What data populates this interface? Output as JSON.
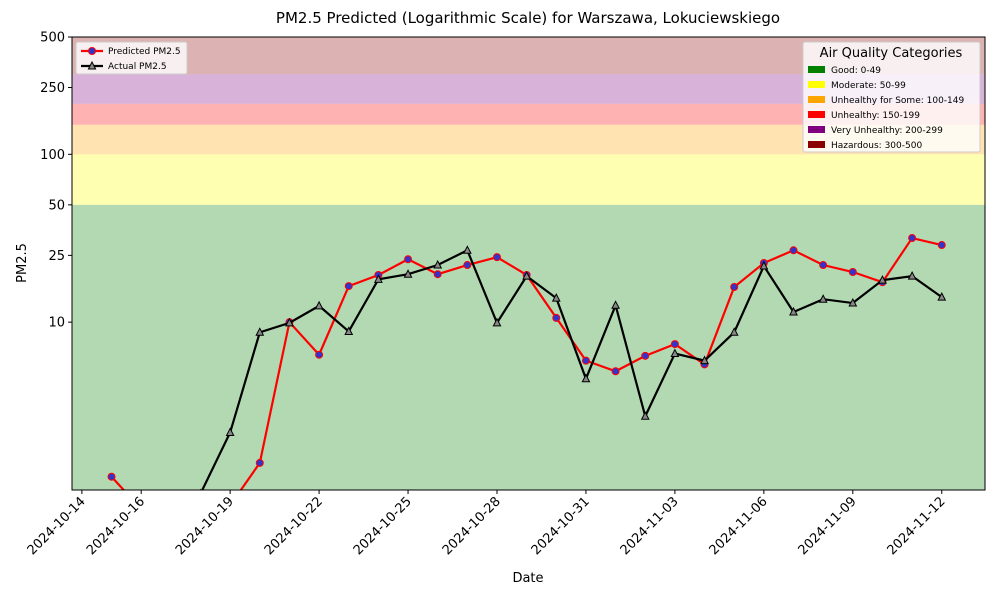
{
  "chart_data": {
    "type": "line",
    "title": "PM2.5 Predicted (Logarithmic Scale) for Warszawa, Lokuciewskiego",
    "x_label": "Date",
    "y_label": "PM2.5",
    "log_scale": true,
    "ylim": [
      1,
      500
    ],
    "yticks": [
      10,
      25,
      50,
      100,
      250,
      500
    ],
    "xlim": [
      "2024-10-13T16:00",
      "2024-11-13T11:00"
    ],
    "xticks": [
      "2024-10-14",
      "2024-10-16",
      "2024-10-19",
      "2024-10-22",
      "2024-10-25",
      "2024-10-28",
      "2024-10-31",
      "2024-11-03",
      "2024-11-06",
      "2024-11-09",
      "2024-11-12"
    ],
    "legend_loc": "upper left",
    "x": [
      "2024-10-15",
      "2024-10-16",
      "2024-10-17",
      "2024-10-18",
      "2024-10-19",
      "2024-10-20",
      "2024-10-21",
      "2024-10-22",
      "2024-10-23",
      "2024-10-24",
      "2024-10-25",
      "2024-10-26",
      "2024-10-27",
      "2024-10-28",
      "2024-10-29",
      "2024-10-30",
      "2024-10-31",
      "2024-11-01",
      "2024-11-02",
      "2024-11-03",
      "2024-11-04",
      "2024-11-05",
      "2024-11-06",
      "2024-11-07",
      "2024-11-08",
      "2024-11-09",
      "2024-11-10",
      "2024-11-11",
      "2024-11-12"
    ],
    "series": [
      {
        "name": "Predicted PM2.5",
        "color": "#ff0000",
        "marker": "circle",
        "marker_color": "#3333cc",
        "values": [
          1.2,
          0.77,
          0.7,
          0.7,
          0.81,
          1.45,
          10,
          6.4,
          16.4,
          19.1,
          23.7,
          19.3,
          21.9,
          24.4,
          19.1,
          10.6,
          5.9,
          5.1,
          6.3,
          7.4,
          5.6,
          16.2,
          22.5,
          26.8,
          21.9,
          19.9,
          17.3,
          31.7,
          28.8
        ]
      },
      {
        "name": "Actual PM2.5",
        "color": "#000000",
        "marker": "triangle",
        "marker_color": "#888888",
        "values": [
          null,
          null,
          null,
          0.95,
          2.2,
          8.7,
          9.9,
          12.5,
          8.8,
          18.0,
          19.3,
          21.9,
          26.8,
          9.9,
          18.8,
          13.9,
          4.6,
          12.6,
          2.75,
          6.5,
          5.9,
          8.7,
          21.6,
          11.5,
          13.7,
          13.0,
          17.8,
          18.8,
          14.1
        ]
      }
    ],
    "categories_legend": {
      "title": "Air Quality Categories",
      "items": [
        {
          "label": "Good: 0-49",
          "color": "#008000",
          "range": [
            0,
            49
          ]
        },
        {
          "label": "Moderate: 50-99",
          "color": "#ffff00",
          "range": [
            50,
            99
          ]
        },
        {
          "label": "Unhealthy for Some: 100-149",
          "color": "#ffa500",
          "range": [
            100,
            149
          ]
        },
        {
          "label": "Unhealthy: 150-199",
          "color": "#ff0000",
          "range": [
            150,
            199
          ]
        },
        {
          "label": "Very Unhealthy: 200-299",
          "color": "#800080",
          "range": [
            200,
            299
          ]
        },
        {
          "label": "Hazardous: 300-500",
          "color": "#8b0000",
          "range": [
            300,
            500
          ]
        }
      ]
    }
  }
}
